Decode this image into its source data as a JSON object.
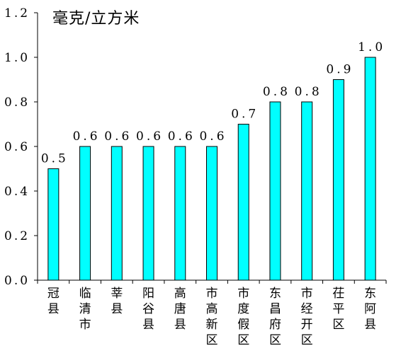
{
  "chart_data": {
    "type": "bar",
    "unit_label": "毫克/立方米",
    "categories": [
      "冠县",
      "临清市",
      "莘县",
      "阳谷县",
      "高唐县",
      "市高新区",
      "市度假区",
      "东昌府区",
      "市经开区",
      "茌平区",
      "东阿县"
    ],
    "values": [
      0.5,
      0.6,
      0.6,
      0.6,
      0.6,
      0.6,
      0.7,
      0.8,
      0.8,
      0.9,
      1.0
    ],
    "data_labels": [
      "0.5",
      "0.6",
      "0.6",
      "0.6",
      "0.6",
      "0.6",
      "0.7",
      "0.8",
      "0.8",
      "0.9",
      "1.0"
    ],
    "y_ticks": [
      "0.0",
      "0.2",
      "0.4",
      "0.6",
      "0.8",
      "1.0",
      "1.2"
    ],
    "ylim": [
      0,
      1.2
    ],
    "bar_color": "#00FFFF",
    "grid": false,
    "legend": "none"
  }
}
